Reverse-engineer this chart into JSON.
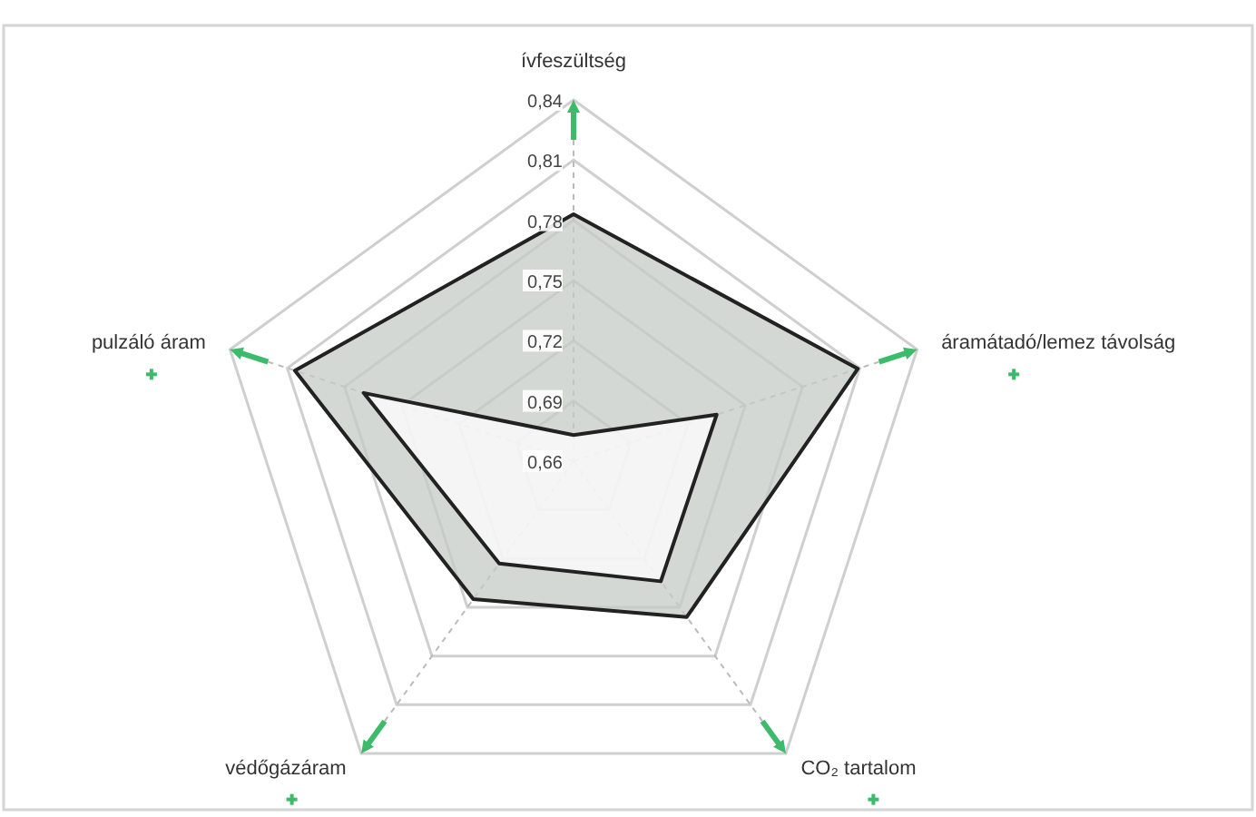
{
  "chart_data": {
    "type": "radar",
    "categories": [
      "ívfeszültség",
      "áramátadó/lemez távolság",
      "CO₂ tartalom",
      "védőgázáram",
      "pulzáló áram"
    ],
    "ylim": [
      0.66,
      0.84
    ],
    "yticks": [
      {
        "value": 0.66,
        "label": "0,66"
      },
      {
        "value": 0.69,
        "label": "0,69"
      },
      {
        "value": 0.72,
        "label": "0,72"
      },
      {
        "value": 0.75,
        "label": "0,75"
      },
      {
        "value": 0.78,
        "label": "0,78"
      },
      {
        "value": 0.81,
        "label": "0,81"
      },
      {
        "value": 0.84,
        "label": "0,84"
      }
    ],
    "grid": true,
    "marker": "none",
    "series": [
      {
        "color": "#222222",
        "values": [
          0.783,
          0.809,
          0.756,
          0.745,
          0.806
        ]
      },
      {
        "color": "#222222",
        "values": [
          0.673,
          0.735,
          0.734,
          0.723,
          0.77
        ]
      }
    ]
  }
}
